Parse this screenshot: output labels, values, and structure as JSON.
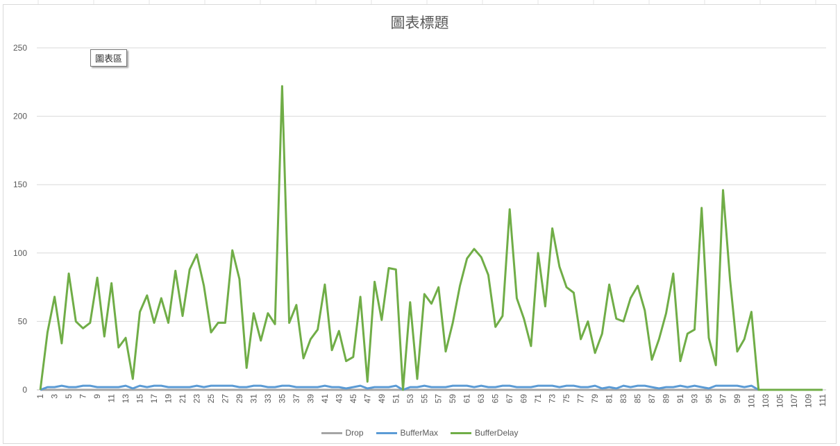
{
  "chart_tip": "圖表區",
  "chart_data": {
    "type": "line",
    "title": "圖表標題",
    "xlabel": "",
    "ylabel": "",
    "ylim": [
      0,
      250
    ],
    "yticks": [
      0,
      50,
      100,
      150,
      200,
      250
    ],
    "x_start": 1,
    "x_end": 111,
    "x_tick_step": 2,
    "grid": "horizontal",
    "legend": "bottom",
    "series": [
      {
        "name": "Drop",
        "color": "#a5a5a5",
        "values": [
          0,
          0,
          0,
          0,
          0,
          0,
          0,
          0,
          0,
          0,
          0,
          0,
          0,
          0,
          0,
          0,
          0,
          0,
          0,
          0,
          0,
          0,
          0,
          0,
          0,
          0,
          0,
          0,
          0,
          0,
          0,
          0,
          0,
          0,
          0,
          0,
          0,
          0,
          0,
          0,
          0,
          0,
          0,
          0,
          0,
          0,
          0,
          0,
          0,
          0,
          0,
          0,
          0,
          0,
          0,
          0,
          0,
          0,
          0,
          0,
          0,
          0,
          0,
          0,
          0,
          0,
          0,
          0,
          0,
          0,
          0,
          0,
          0,
          0,
          0,
          0,
          0,
          0,
          0,
          0,
          0,
          0,
          0,
          0,
          0,
          0,
          0,
          0,
          0,
          0,
          0,
          0,
          0,
          0,
          0,
          0,
          0,
          0,
          0,
          0,
          0,
          0,
          0,
          0,
          0,
          0,
          0,
          0,
          0,
          0,
          0
        ]
      },
      {
        "name": "BufferMax",
        "color": "#5b9bd5",
        "values": [
          0,
          2,
          2,
          3,
          2,
          2,
          3,
          3,
          2,
          2,
          2,
          2,
          3,
          1,
          3,
          2,
          3,
          3,
          2,
          2,
          2,
          2,
          3,
          2,
          3,
          3,
          3,
          3,
          2,
          2,
          3,
          3,
          2,
          2,
          3,
          3,
          2,
          2,
          2,
          2,
          3,
          2,
          2,
          1,
          2,
          3,
          1,
          2,
          2,
          2,
          3,
          0,
          2,
          2,
          3,
          2,
          2,
          2,
          3,
          3,
          3,
          2,
          3,
          2,
          2,
          3,
          3,
          2,
          2,
          2,
          3,
          3,
          3,
          2,
          3,
          3,
          2,
          2,
          3,
          1,
          2,
          1,
          3,
          2,
          3,
          3,
          2,
          1,
          2,
          2,
          3,
          2,
          3,
          2,
          1,
          3,
          3,
          3,
          3,
          2,
          3,
          0,
          0,
          0,
          0,
          0,
          0,
          0,
          0,
          0,
          0
        ]
      },
      {
        "name": "BufferDelay",
        "color": "#70ad47",
        "values": [
          0,
          42,
          68,
          34,
          85,
          50,
          45,
          49,
          82,
          39,
          78,
          31,
          38,
          8,
          57,
          69,
          49,
          67,
          49,
          87,
          54,
          88,
          99,
          76,
          42,
          49,
          49,
          102,
          81,
          16,
          56,
          36,
          56,
          48,
          222,
          49,
          62,
          23,
          37,
          44,
          77,
          29,
          43,
          21,
          24,
          68,
          6,
          79,
          51,
          89,
          88,
          0,
          64,
          8,
          70,
          63,
          75,
          28,
          49,
          76,
          96,
          103,
          97,
          84,
          46,
          54,
          132,
          67,
          52,
          32,
          100,
          61,
          118,
          90,
          75,
          71,
          37,
          50,
          27,
          41,
          77,
          52,
          50,
          67,
          76,
          58,
          22,
          37,
          56,
          85,
          21,
          41,
          44,
          133,
          38,
          18,
          146,
          80,
          28,
          37,
          57,
          0,
          0,
          0,
          0,
          0,
          0,
          0,
          0,
          0,
          0
        ]
      }
    ]
  }
}
